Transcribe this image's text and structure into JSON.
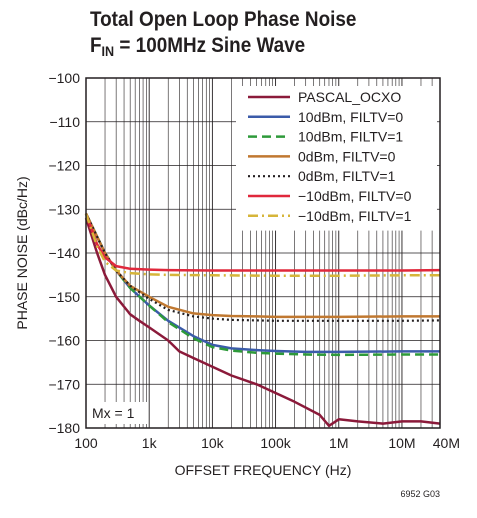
{
  "title_line1": "Total Open Loop Phase Noise",
  "title_line2_prefix": "F",
  "title_line2_sub": "IN",
  "title_line2_suffix": " = 100MHz Sine Wave",
  "annotation": "Mx = 1",
  "figure_id": "6952 G03",
  "chart_data": {
    "type": "line",
    "xlabel": "OFFSET FREQUENCY (Hz)",
    "ylabel": "PHASE NOISE (dBc/Hz)",
    "xscale": "log",
    "xlim": [
      100,
      40000000
    ],
    "ylim": [
      -180,
      -100
    ],
    "xticks": [
      100,
      1000,
      10000,
      100000,
      1000000,
      10000000,
      40000000
    ],
    "xtick_labels": [
      "100",
      "1k",
      "10k",
      "100k",
      "1M",
      "10M",
      "40M"
    ],
    "yticks": [
      -100,
      -110,
      -120,
      -130,
      -140,
      -150,
      -160,
      -170,
      -180
    ],
    "ytick_labels": [
      "−100",
      "−110",
      "−120",
      "−130",
      "−140",
      "−150",
      "−160",
      "−170",
      "−180"
    ],
    "grid": true,
    "legend_position": "top-right",
    "series": [
      {
        "name": "PASCAL_OCXO",
        "color": "#8b1a3a",
        "dash": "solid",
        "x": [
          100,
          150,
          200,
          300,
          500,
          700,
          1000,
          2000,
          3000,
          5000,
          10000,
          20000,
          50000,
          100000,
          200000,
          500000,
          700000,
          1000000,
          2000000,
          5000000,
          10000000,
          20000000,
          40000000
        ],
        "y": [
          -132,
          -140,
          -145,
          -150,
          -154,
          -155.5,
          -157,
          -160,
          -162.5,
          -164,
          -166,
          -168,
          -170,
          -172,
          -174,
          -177,
          -179.5,
          -178,
          -178.5,
          -179,
          -178.5,
          -178.5,
          -179
        ]
      },
      {
        "name": "10dBm, FILTV=0",
        "color": "#3b5ba9",
        "dash": "solid",
        "x": [
          100,
          200,
          300,
          500,
          1000,
          2000,
          5000,
          10000,
          20000,
          50000,
          100000,
          300000,
          1000000,
          10000000,
          40000000
        ],
        "y": [
          -131,
          -140,
          -144,
          -148,
          -152,
          -155.5,
          -159,
          -161,
          -161.8,
          -162.2,
          -162.4,
          -162.6,
          -162.6,
          -162.5,
          -162.5
        ]
      },
      {
        "name": "10dBm, FILTV=1",
        "color": "#2e9a3a",
        "dash": "dash",
        "x": [
          100,
          200,
          300,
          500,
          1000,
          2000,
          5000,
          10000,
          20000,
          50000,
          100000,
          300000,
          1000000,
          10000000,
          40000000
        ],
        "y": [
          -131,
          -140,
          -144,
          -148,
          -152,
          -155.8,
          -159.5,
          -161.5,
          -162.3,
          -162.8,
          -163,
          -163.2,
          -163.3,
          -163.2,
          -163.2
        ]
      },
      {
        "name": "0dBm, FILTV=0",
        "color": "#c07830",
        "dash": "solid",
        "x": [
          100,
          200,
          300,
          500,
          1000,
          2000,
          5000,
          10000,
          20000,
          50000,
          100000,
          1000000,
          10000000,
          40000000
        ],
        "y": [
          -131,
          -140,
          -144,
          -147.5,
          -150,
          -152.3,
          -153.8,
          -154.2,
          -154.4,
          -154.5,
          -154.6,
          -154.6,
          -154.5,
          -154.5
        ]
      },
      {
        "name": "0dBm, FILTV=1",
        "color": "#231f20",
        "dash": "dot",
        "x": [
          100,
          200,
          300,
          500,
          1000,
          2000,
          5000,
          10000,
          20000,
          50000,
          100000,
          1000000,
          10000000,
          40000000
        ],
        "y": [
          -131,
          -140,
          -144,
          -147.5,
          -150.5,
          -153,
          -154.5,
          -155,
          -155.3,
          -155.4,
          -155.5,
          -155.5,
          -155.5,
          -155.4
        ]
      },
      {
        "name": "−10dBm, FILTV=0",
        "color": "#e0283c",
        "dash": "solid",
        "x": [
          100,
          150,
          200,
          300,
          500,
          1000,
          2000,
          10000,
          100000,
          1000000,
          10000000,
          40000000
        ],
        "y": [
          -131,
          -138,
          -141,
          -143,
          -143.6,
          -143.8,
          -143.9,
          -144,
          -144,
          -144,
          -144,
          -143.9
        ]
      },
      {
        "name": "−10dBm, FILTV=1",
        "color": "#d6b53a",
        "dash": "dashdot",
        "x": [
          100,
          150,
          200,
          300,
          500,
          1000,
          2000,
          10000,
          100000,
          1000000,
          10000000,
          40000000
        ],
        "y": [
          -131,
          -138.5,
          -142,
          -144,
          -144.6,
          -144.9,
          -145,
          -145.1,
          -145.2,
          -145.2,
          -145.1,
          -145.1
        ]
      }
    ]
  }
}
